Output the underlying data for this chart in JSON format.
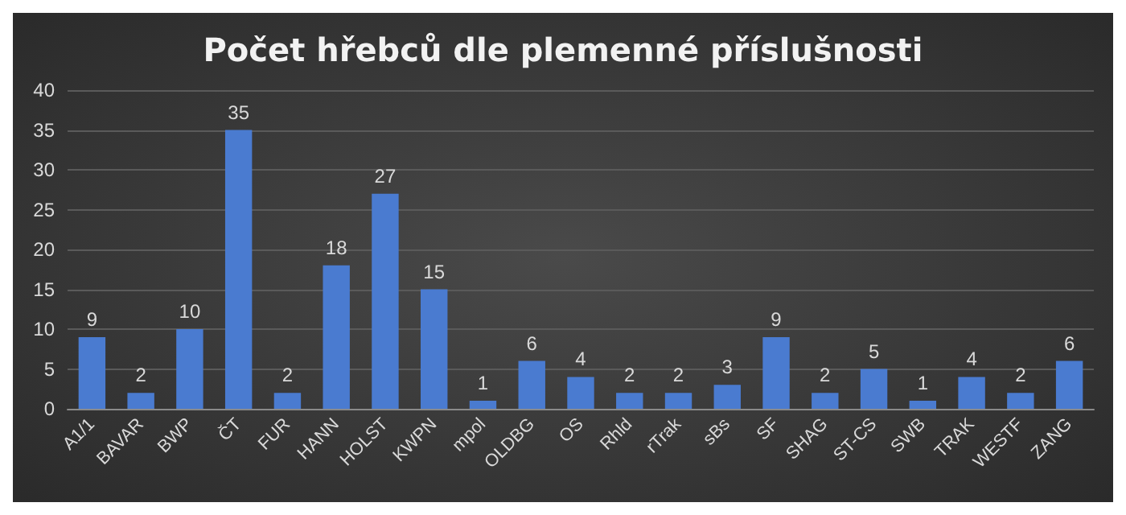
{
  "chart_data": {
    "type": "bar",
    "title": "Počet hřebců dle plemenné příslušnosti",
    "categories": [
      "A1/1",
      "BAVAR",
      "BWP",
      "ČT",
      "FUR",
      "HANN",
      "HOLST",
      "KWPN",
      "mpol",
      "OLDBG",
      "OS",
      "Rhld",
      "rTrak",
      "sBs",
      "SF",
      "SHAG",
      "ST-CS",
      "SWB",
      "TRAK",
      "WESTF",
      "ZANG"
    ],
    "values": [
      9,
      2,
      10,
      35,
      2,
      18,
      27,
      15,
      1,
      6,
      4,
      2,
      2,
      3,
      9,
      2,
      5,
      1,
      4,
      2,
      6
    ],
    "color": "#4a7bd0",
    "ylim": [
      0,
      40
    ],
    "yticks": [
      0,
      5,
      10,
      15,
      20,
      25,
      30,
      35,
      40
    ],
    "grid": "y",
    "data_labels": true
  }
}
